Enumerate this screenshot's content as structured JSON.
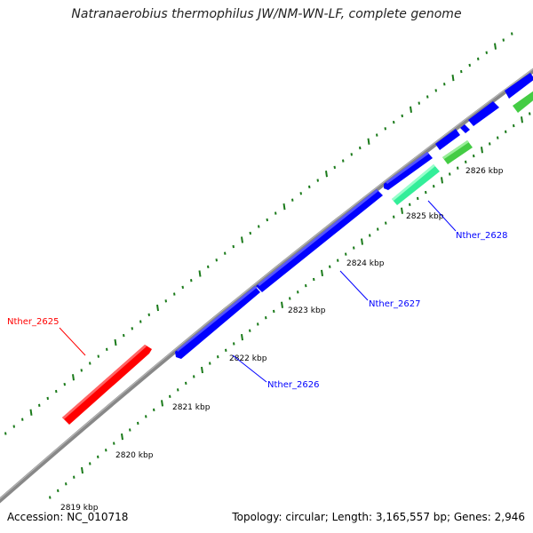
{
  "title": "Natranaerobius thermophilus JW/NM-WN-LF, complete genome",
  "footer": {
    "accession": "Accession: NC_010718",
    "summary": "Topology: circular; Length: 3,165,557 bp; Genes: 2,946"
  },
  "colors": {
    "backbone": "#888888",
    "tick": "#1a7a1a",
    "gene_forward_neighbor": "#ff0000",
    "gene_reverse": "#0000ff",
    "gene_rna": "#33ee99",
    "gene_other": "#44cc44",
    "label_red": "#ff0000",
    "label_blue": "#0000ff"
  },
  "ticks": [
    {
      "label": "2819 kbp"
    },
    {
      "label": "2820 kbp"
    },
    {
      "label": "2821 kbp"
    },
    {
      "label": "2822 kbp"
    },
    {
      "label": "2823 kbp"
    },
    {
      "label": "2824 kbp"
    },
    {
      "label": "2825 kbp"
    },
    {
      "label": "2826 kbp"
    }
  ],
  "genes": [
    {
      "name": "Nther_2625",
      "color": "red"
    },
    {
      "name": "Nther_2626",
      "color": "blue"
    },
    {
      "name": "Nther_2627",
      "color": "blue"
    },
    {
      "name": "Nther_2628",
      "color": "blue"
    }
  ]
}
